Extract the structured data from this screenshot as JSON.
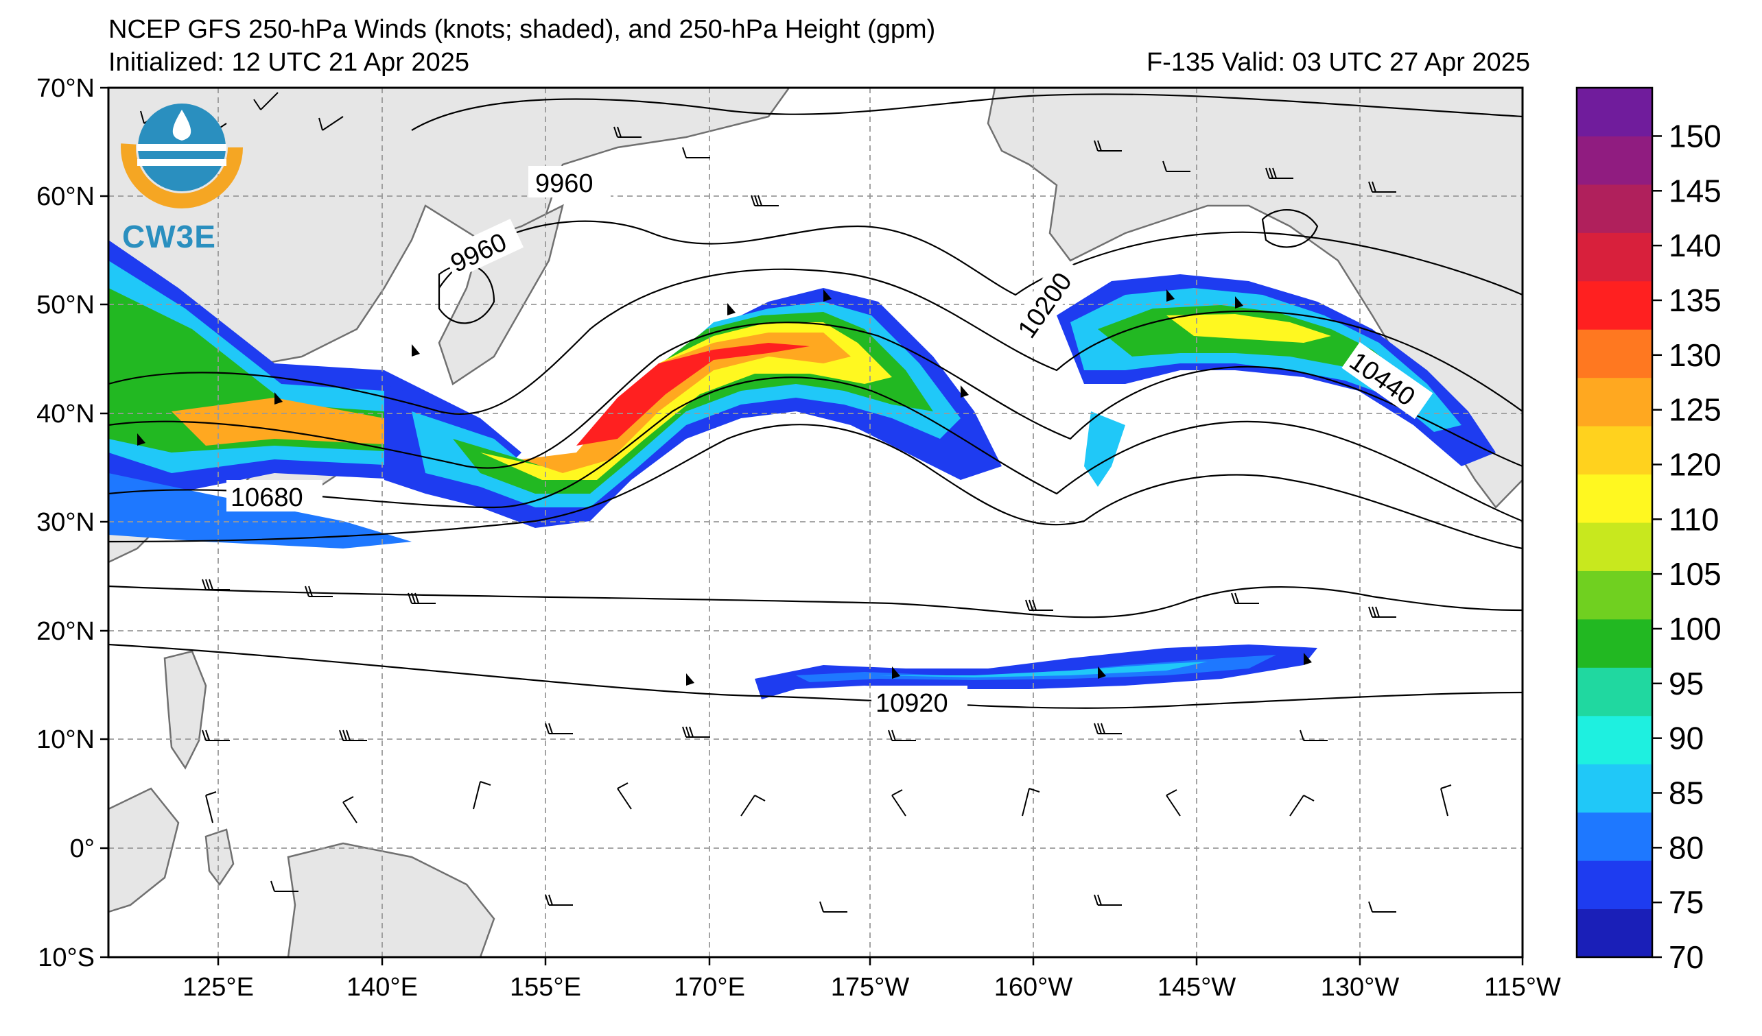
{
  "header": {
    "title": "NCEP GFS 250-hPa Winds (knots; shaded), and 250-hPa Height (gpm)",
    "initialized": "Initialized: 12 UTC 21 Apr 2025",
    "valid": "F-135  Valid: 03 UTC 27 Apr 2025"
  },
  "logo": {
    "text": "CW3E"
  },
  "axes": {
    "lat_ticks": [
      "70°N",
      "60°N",
      "50°N",
      "40°N",
      "30°N",
      "20°N",
      "10°N",
      "0°",
      "10°S"
    ],
    "lon_ticks": [
      "125°E",
      "140°E",
      "155°E",
      "170°E",
      "175°W",
      "160°W",
      "145°W",
      "130°W",
      "115°W"
    ]
  },
  "colorbar": {
    "ticks": [
      "70",
      "75",
      "80",
      "85",
      "90",
      "95",
      "100",
      "105",
      "110",
      "120",
      "125",
      "130",
      "135",
      "140",
      "145",
      "150"
    ],
    "colors": [
      "#1a1fb8",
      "#1e3cf0",
      "#1e78ff",
      "#20c8f8",
      "#1ef0e0",
      "#20d8a0",
      "#22b822",
      "#70d020",
      "#c8e81e",
      "#fff820",
      "#ffd21e",
      "#ffa820",
      "#ff7820",
      "#ff2020",
      "#d8203c",
      "#b0205c",
      "#901c80",
      "#701c9c"
    ]
  },
  "contour_labels": [
    "9960",
    "9960",
    "10200",
    "10440",
    "10680",
    "10920"
  ],
  "colors": {
    "land": "#e6e6e6",
    "coast": "#707070",
    "grid": "#999999"
  }
}
